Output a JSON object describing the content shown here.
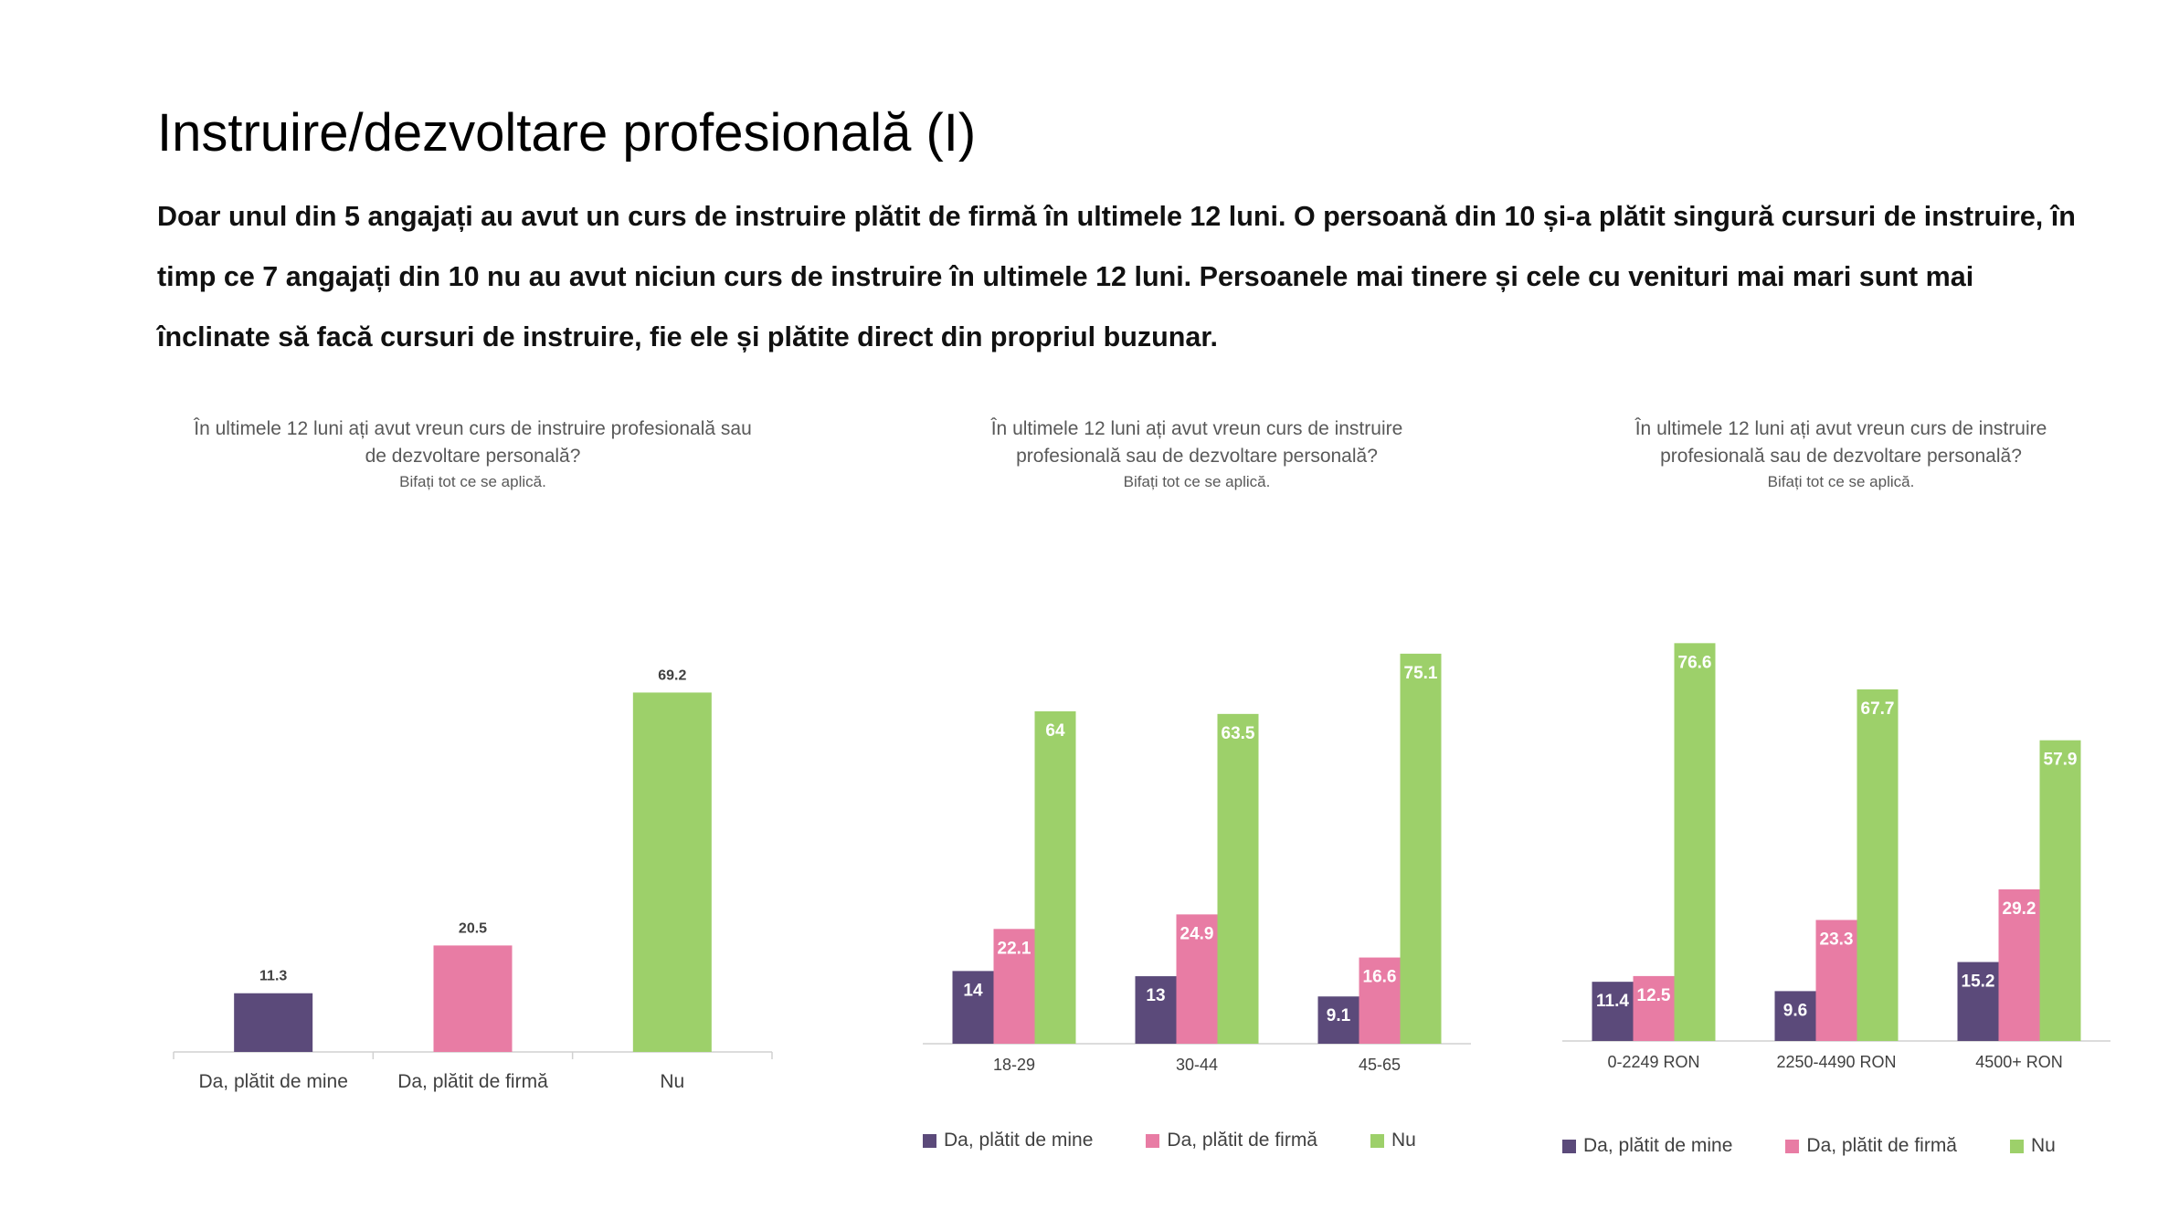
{
  "slide": {
    "title": "Instruire/dezvoltare profesională (I)",
    "summary_lines": [
      "Doar unul din 5 angajați au avut un curs de instruire plătit de firmă în ultimele 12 luni. O persoană din 10 și-a plătit singură cursuri de instruire, în",
      "timp ce 7 angajați din 10 nu au avut niciun curs de instruire în ultimele 12 luni. Persoanele mai tinere și cele cu venituri mai mari sunt mai",
      "înclinate să facă cursuri de instruire, fie ele și  plătite direct din propriul buzunar."
    ]
  },
  "colors": {
    "self_paid": "#5B4A7A",
    "company_paid": "#E87CA4",
    "no": "#9DD06A"
  },
  "chart_data": [
    {
      "type": "bar",
      "title_lines": [
        "În ultimele 12 luni ați avut vreun curs de instruire profesională sau",
        "de dezvoltare personală?"
      ],
      "subtitle": "Bifați tot ce se aplică.",
      "categories": [
        "Da, plătit de mine",
        "Da, plătit de firmă",
        "Nu"
      ],
      "values": [
        11.3,
        20.5,
        69.2
      ],
      "value_labels": [
        "11.3",
        "20.5",
        "69.2"
      ],
      "ylim": [
        0,
        80
      ],
      "grid": false,
      "legend": false
    },
    {
      "type": "bar",
      "title_lines": [
        "În ultimele 12 luni ați avut vreun curs de instruire",
        "profesională sau de dezvoltare personală?"
      ],
      "subtitle": "Bifați tot ce se aplică.",
      "categories": [
        "18-29",
        "30-44",
        "45-65"
      ],
      "series": [
        {
          "name": "Da, plătit de mine",
          "values": [
            14,
            13,
            9.1
          ],
          "labels": [
            "14",
            "13",
            "9.1"
          ]
        },
        {
          "name": "Da, plătit de firmă",
          "values": [
            22.1,
            24.9,
            16.6
          ],
          "labels": [
            "22.1",
            "24.9",
            "16.6"
          ]
        },
        {
          "name": "Nu",
          "values": [
            64,
            63.5,
            75.1
          ],
          "labels": [
            "64",
            "63.5",
            "75.1"
          ]
        }
      ],
      "ylim": [
        0,
        80
      ],
      "grid": false,
      "legend": "bottom"
    },
    {
      "type": "bar",
      "title_lines": [
        "În ultimele 12 luni ați avut vreun curs de instruire",
        "profesională sau de dezvoltare personală?"
      ],
      "subtitle": "Bifați tot ce se aplică.",
      "categories": [
        "0-2249 RON",
        "2250-4490 RON",
        "4500+ RON"
      ],
      "series": [
        {
          "name": "Da, plătit de mine",
          "values": [
            11.4,
            9.6,
            15.2
          ],
          "labels": [
            "11.4",
            "9.6",
            "15.2"
          ]
        },
        {
          "name": "Da, plătit de firmă",
          "values": [
            12.5,
            23.3,
            29.2
          ],
          "labels": [
            "12.5",
            "23.3",
            "29.2"
          ]
        },
        {
          "name": "Nu",
          "values": [
            76.6,
            67.7,
            57.9
          ],
          "labels": [
            "76.6",
            "67.7",
            "57.9"
          ]
        }
      ],
      "ylim": [
        0,
        80
      ],
      "grid": false,
      "legend": "bottom"
    }
  ]
}
